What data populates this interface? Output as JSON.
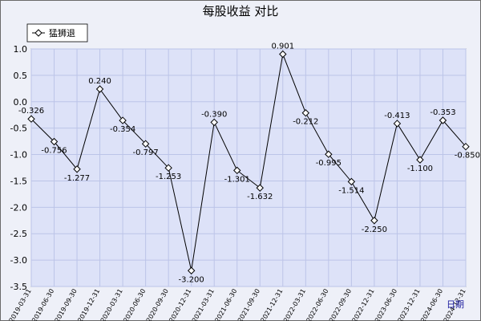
{
  "chart_data": {
    "type": "line",
    "title": "每股收益  对比",
    "xlabel": "",
    "ylabel": "",
    "ylim": [
      -3.5,
      1.0
    ],
    "yticks": [
      "1.0",
      "0.5",
      "0.0",
      "-0.5",
      "-1.0",
      "-1.5",
      "-2.0",
      "-2.5",
      "-3.0",
      "-3.5"
    ],
    "grid": true,
    "legend_position": "top-left",
    "corner_label": "日期",
    "categories": [
      "2019-03-31",
      "2019-06-30",
      "2019-09-30",
      "2019-12-31",
      "2020-03-31",
      "2020-06-30",
      "2020-09-30",
      "2020-12-31",
      "2021-03-31",
      "2021-06-30",
      "2021-09-30",
      "2021-12-31",
      "2022-03-31",
      "2022-06-30",
      "2022-09-30",
      "2022-12-31",
      "2023-06-30",
      "2023-12-31",
      "2024-06-30",
      "2024-12-31"
    ],
    "series": [
      {
        "name": "猛狮退",
        "values": [
          -0.326,
          -0.756,
          -1.277,
          0.24,
          -0.354,
          -0.797,
          -1.253,
          -3.2,
          -0.39,
          -1.301,
          -1.632,
          0.901,
          -0.212,
          -0.995,
          -1.514,
          -2.25,
          -0.413,
          -1.1,
          -0.353,
          -0.85
        ],
        "labels": [
          "-0.326",
          "-0.756",
          "-1.277",
          "0.240",
          "-0.354",
          "-0.797",
          "-1.253",
          "-3.200",
          "-0.390",
          "-1.301",
          "-1.632",
          "0.901",
          "-0.212",
          "-0.995",
          "-1.514",
          "-2.250",
          "-0.413",
          "-1.100",
          "-0.353",
          "-0.850"
        ]
      }
    ],
    "colors": {
      "plot_background": "#dde2f8",
      "grid": "#bcc4e8",
      "line": "#000000",
      "marker_fill": "#ffffff"
    }
  }
}
